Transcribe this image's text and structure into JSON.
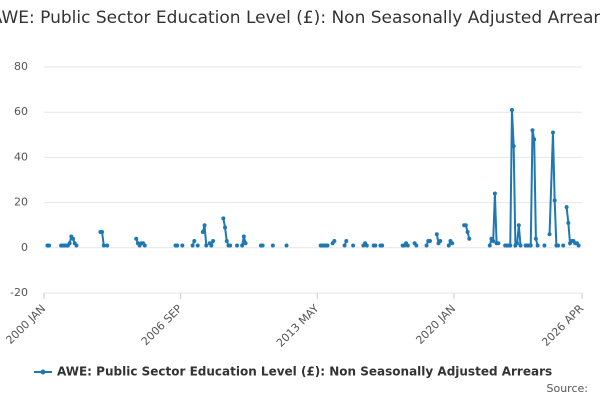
{
  "chart_data": {
    "type": "line",
    "title": "AWE: Public Sector Education Level (£): Non Seasonally Adjusted Arrears",
    "source_label": "Source:",
    "x": [
      "2000 MAR",
      "2000 APR",
      "2000 JUL",
      "2000 NOV",
      "2000 DEC",
      "2001 JAN",
      "2001 FEB",
      "2001 MAR",
      "2001 APR",
      "2001 MAY",
      "2001 JUN",
      "2001 JUL",
      "2001 AUG",
      "2002 FEB",
      "2002 OCT",
      "2002 NOV",
      "2002 DEC",
      "2003 JAN",
      "2003 FEB",
      "2003 MAY",
      "2004 JUL",
      "2004 AUG",
      "2004 SEP",
      "2004 OCT",
      "2004 NOV",
      "2004 DEC",
      "2005 JUN",
      "2006 JUN",
      "2006 JUL",
      "2006 AUG",
      "2006 OCT",
      "2007 JAN",
      "2007 APR",
      "2007 MAY",
      "2007 JUN",
      "2007 JUL",
      "2007 SEP",
      "2007 OCT",
      "2007 NOV",
      "2007 DEC",
      "2008 JAN",
      "2008 FEB",
      "2008 MAR",
      "2008 APR",
      "2008 JUL",
      "2008 OCT",
      "2008 NOV",
      "2008 DEC",
      "2009 JAN",
      "2009 FEB",
      "2009 APR",
      "2009 JUN",
      "2009 JUL",
      "2009 SEP",
      "2009 OCT",
      "2009 NOV",
      "2010 FEB",
      "2010 AUG",
      "2010 SEP",
      "2010 NOV",
      "2011 MAR",
      "2011 JUN",
      "2011 NOV",
      "2012 JUL",
      "2013 JUL",
      "2013 AUG",
      "2013 SEP",
      "2013 OCT",
      "2013 NOV",
      "2014 JAN",
      "2014 FEB",
      "2014 MAR",
      "2014 MAY",
      "2014 SEP",
      "2014 OCT",
      "2014 DEC",
      "2015 FEB",
      "2015 MAY",
      "2015 AUG",
      "2015 SEP",
      "2015 OCT",
      "2015 DEC",
      "2016 FEB",
      "2016 MAR",
      "2016 APR",
      "2016 JUN",
      "2016 JUL",
      "2016 SEP",
      "2017 JUL",
      "2017 AUG",
      "2017 SEP",
      "2017 OCT",
      "2017 DEC",
      "2018 FEB",
      "2018 MAR",
      "2018 MAY",
      "2018 SEP",
      "2018 OCT",
      "2018 NOV",
      "2018 DEC",
      "2019 MAR",
      "2019 APR",
      "2019 MAY",
      "2019 JUL",
      "2019 OCT",
      "2019 NOV",
      "2019 DEC",
      "2020 MAR",
      "2020 JUL",
      "2020 AUG",
      "2020 SEP",
      "2020 OCT",
      "2021 JAN",
      "2021 OCT",
      "2021 NOV",
      "2021 DEC",
      "2022 JAN",
      "2022 FEB",
      "2022 MAR",
      "2022 APR",
      "2022 JUL",
      "2022 AUG",
      "2022 SEP",
      "2022 OCT",
      "2022 NOV",
      "2022 DEC",
      "2023 JAN",
      "2023 FEB",
      "2023 MAR",
      "2023 APR",
      "2023 JUN",
      "2023 JUL",
      "2023 AUG",
      "2023 SEP",
      "2023 OCT",
      "2023 NOV",
      "2023 DEC",
      "2024 JAN",
      "2024 FEB",
      "2024 MAR",
      "2024 JUN",
      "2024 AUG",
      "2024 SEP",
      "2024 NOV",
      "2024 DEC",
      "2025 JAN",
      "2025 FEB",
      "2025 MAR",
      "2025 MAY",
      "2025 JUN",
      "2025 JUL",
      "2025 AUG",
      "2025 SEP",
      "2025 OCT",
      "2025 NOV",
      "2025 DEC",
      "2026 JAN",
      "2026 FEB"
    ],
    "series": [
      {
        "name": "AWE: Public Sector Education Level (£): Non Seasonally Adjusted Arrears",
        "color": "#1f77b4",
        "values": [
          1,
          1,
          null,
          1,
          1,
          1,
          1,
          1,
          2,
          5,
          4,
          2,
          1,
          null,
          7,
          7,
          1,
          null,
          1,
          null,
          4,
          2,
          1,
          2,
          2,
          1,
          null,
          1,
          1,
          null,
          1,
          null,
          1,
          3,
          null,
          1,
          null,
          7,
          10,
          1,
          null,
          2,
          1,
          3,
          null,
          13,
          9,
          3,
          1,
          1,
          null,
          1,
          null,
          1,
          5,
          2,
          null,
          1,
          1,
          null,
          1,
          null,
          1,
          null,
          1,
          1,
          1,
          1,
          1,
          null,
          2,
          3,
          null,
          1,
          3,
          null,
          1,
          null,
          1,
          2,
          1,
          null,
          1,
          1,
          null,
          1,
          1,
          null,
          1,
          1,
          2,
          1,
          null,
          2,
          1,
          null,
          1,
          3,
          3,
          null,
          6,
          2,
          3,
          null,
          1,
          3,
          2,
          null,
          10,
          10,
          7,
          4,
          null,
          1,
          4,
          3,
          24,
          2,
          2,
          null,
          1,
          1,
          1,
          1,
          61,
          45,
          1,
          2,
          10,
          1,
          null,
          1,
          1,
          1,
          1,
          52,
          48,
          4,
          1,
          null,
          1,
          null,
          6,
          51,
          21,
          1,
          1,
          null,
          1,
          null,
          18,
          11,
          2,
          3,
          3,
          2,
          2,
          1
        ]
      }
    ],
    "xlim": [
      "2000 JAN",
      "2026 APR"
    ],
    "xticks": [
      "2000 JAN",
      "2006 SEP",
      "2013 MAY",
      "2020 JAN",
      "2026 APR"
    ],
    "ylim": [
      -20,
      80
    ],
    "yticks": [
      -20,
      0,
      20,
      40,
      60,
      80
    ],
    "grid": true
  }
}
